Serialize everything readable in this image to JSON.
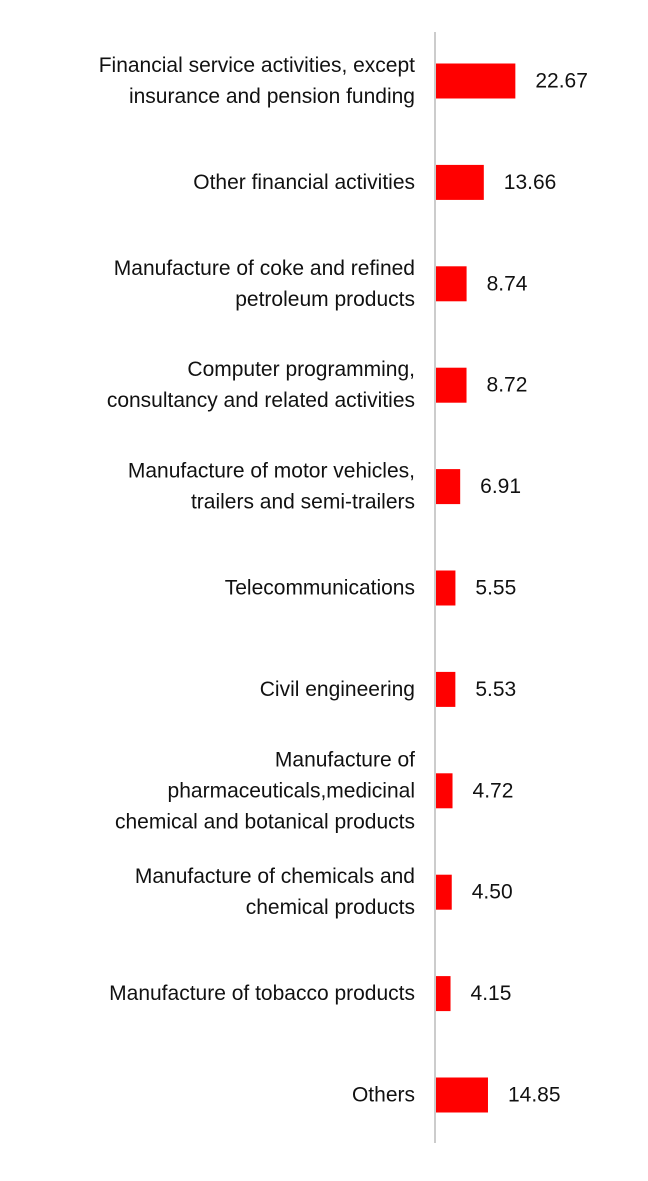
{
  "colors": {
    "bar": "#ff0000",
    "axis": "#cccccc",
    "text": "#111111",
    "background": "#ffffff"
  },
  "chart_data": {
    "type": "bar",
    "orientation": "horizontal",
    "title": "",
    "xlabel": "",
    "ylabel": "",
    "grid": false,
    "legend": "none",
    "xlim": [
      0,
      25
    ],
    "categories": [
      [
        "Financial service activities, except",
        "insurance and pension funding"
      ],
      [
        "Other financial activities"
      ],
      [
        "Manufacture of coke and refined",
        "petroleum products"
      ],
      [
        "Computer programming,",
        "consultancy and related activities"
      ],
      [
        "Manufacture of motor vehicles,",
        "trailers and semi-trailers"
      ],
      [
        "Telecommunications"
      ],
      [
        "Civil engineering"
      ],
      [
        "Manufacture of",
        "pharmaceuticals,medicinal",
        "chemical and botanical products"
      ],
      [
        "Manufacture of chemicals and",
        "chemical products"
      ],
      [
        "Manufacture of tobacco products"
      ],
      [
        "Others"
      ]
    ],
    "values": [
      22.67,
      13.66,
      8.74,
      8.72,
      6.91,
      5.55,
      5.53,
      4.72,
      4.5,
      4.15,
      14.85
    ],
    "value_labels": [
      "22.67",
      "13.66",
      "8.74",
      "8.72",
      "6.91",
      "5.55",
      "5.53",
      "4.72",
      "4.50",
      "4.15",
      "14.85"
    ]
  }
}
